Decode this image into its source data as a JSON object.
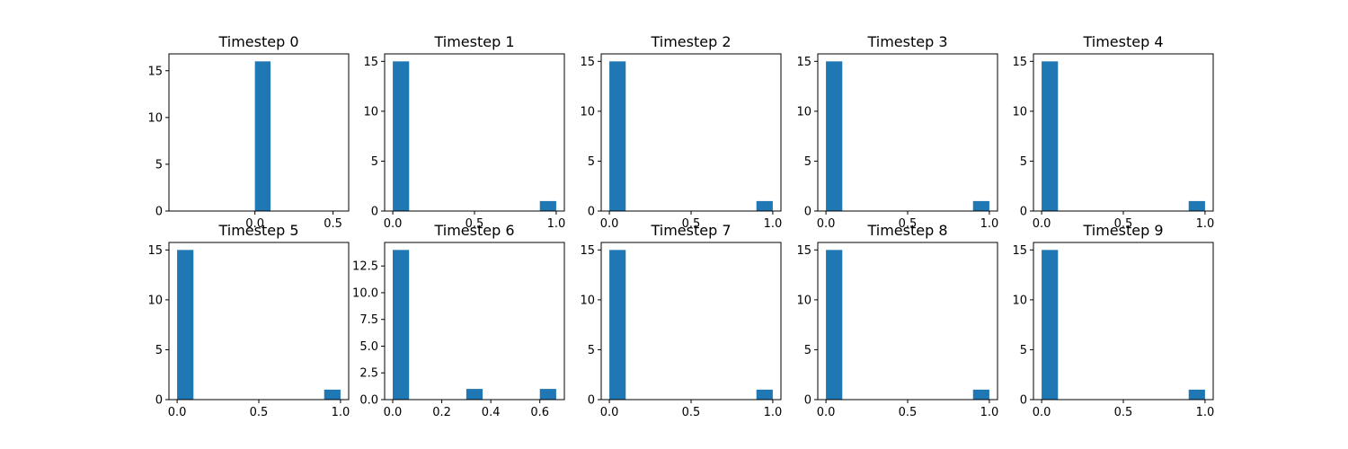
{
  "chart_data": [
    {
      "type": "bar",
      "title": "Timestep 0",
      "bars": [
        {
          "x0": 0.0,
          "x1": 0.1,
          "value": 16
        }
      ],
      "xlim": [
        -0.55,
        0.6
      ],
      "ylim": [
        0,
        16.8
      ],
      "xticks": [
        {
          "value": 0.0,
          "label": "0.0"
        },
        {
          "value": 0.5,
          "label": "0.5"
        }
      ],
      "yticks": [
        {
          "value": 0,
          "label": "0"
        },
        {
          "value": 5,
          "label": "5"
        },
        {
          "value": 10,
          "label": "10"
        },
        {
          "value": 15,
          "label": "15"
        }
      ]
    },
    {
      "type": "bar",
      "title": "Timestep 1",
      "bars": [
        {
          "x0": 0.0,
          "x1": 0.1,
          "value": 15
        },
        {
          "x0": 0.9,
          "x1": 1.0,
          "value": 1
        }
      ],
      "xlim": [
        -0.05,
        1.05
      ],
      "ylim": [
        0,
        15.75
      ],
      "xticks": [
        {
          "value": 0.0,
          "label": "0.0"
        },
        {
          "value": 0.5,
          "label": "0.5"
        },
        {
          "value": 1.0,
          "label": "1.0"
        }
      ],
      "yticks": [
        {
          "value": 0,
          "label": "0"
        },
        {
          "value": 5,
          "label": "5"
        },
        {
          "value": 10,
          "label": "10"
        },
        {
          "value": 15,
          "label": "15"
        }
      ]
    },
    {
      "type": "bar",
      "title": "Timestep 2",
      "bars": [
        {
          "x0": 0.0,
          "x1": 0.1,
          "value": 15
        },
        {
          "x0": 0.9,
          "x1": 1.0,
          "value": 1
        }
      ],
      "xlim": [
        -0.05,
        1.05
      ],
      "ylim": [
        0,
        15.75
      ],
      "xticks": [
        {
          "value": 0.0,
          "label": "0.0"
        },
        {
          "value": 0.5,
          "label": "0.5"
        },
        {
          "value": 1.0,
          "label": "1.0"
        }
      ],
      "yticks": [
        {
          "value": 0,
          "label": "0"
        },
        {
          "value": 5,
          "label": "5"
        },
        {
          "value": 10,
          "label": "10"
        },
        {
          "value": 15,
          "label": "15"
        }
      ]
    },
    {
      "type": "bar",
      "title": "Timestep 3",
      "bars": [
        {
          "x0": 0.0,
          "x1": 0.1,
          "value": 15
        },
        {
          "x0": 0.9,
          "x1": 1.0,
          "value": 1
        }
      ],
      "xlim": [
        -0.05,
        1.05
      ],
      "ylim": [
        0,
        15.75
      ],
      "xticks": [
        {
          "value": 0.0,
          "label": "0.0"
        },
        {
          "value": 0.5,
          "label": "0.5"
        },
        {
          "value": 1.0,
          "label": "1.0"
        }
      ],
      "yticks": [
        {
          "value": 0,
          "label": "0"
        },
        {
          "value": 5,
          "label": "5"
        },
        {
          "value": 10,
          "label": "10"
        },
        {
          "value": 15,
          "label": "15"
        }
      ]
    },
    {
      "type": "bar",
      "title": "Timestep 4",
      "bars": [
        {
          "x0": 0.0,
          "x1": 0.1,
          "value": 15
        },
        {
          "x0": 0.9,
          "x1": 1.0,
          "value": 1
        }
      ],
      "xlim": [
        -0.05,
        1.05
      ],
      "ylim": [
        0,
        15.75
      ],
      "xticks": [
        {
          "value": 0.0,
          "label": "0.0"
        },
        {
          "value": 0.5,
          "label": "0.5"
        },
        {
          "value": 1.0,
          "label": "1.0"
        }
      ],
      "yticks": [
        {
          "value": 0,
          "label": "0"
        },
        {
          "value": 5,
          "label": "5"
        },
        {
          "value": 10,
          "label": "10"
        },
        {
          "value": 15,
          "label": "15"
        }
      ]
    },
    {
      "type": "bar",
      "title": "Timestep 5",
      "bars": [
        {
          "x0": 0.0,
          "x1": 0.1,
          "value": 15
        },
        {
          "x0": 0.9,
          "x1": 1.0,
          "value": 1
        }
      ],
      "xlim": [
        -0.05,
        1.05
      ],
      "ylim": [
        0,
        15.75
      ],
      "xticks": [
        {
          "value": 0.0,
          "label": "0.0"
        },
        {
          "value": 0.5,
          "label": "0.5"
        },
        {
          "value": 1.0,
          "label": "1.0"
        }
      ],
      "yticks": [
        {
          "value": 0,
          "label": "0"
        },
        {
          "value": 5,
          "label": "5"
        },
        {
          "value": 10,
          "label": "10"
        },
        {
          "value": 15,
          "label": "15"
        }
      ]
    },
    {
      "type": "bar",
      "title": "Timestep 6",
      "bars": [
        {
          "x0": 0.0,
          "x1": 0.0667,
          "value": 14
        },
        {
          "x0": 0.3,
          "x1": 0.3667,
          "value": 1
        },
        {
          "x0": 0.6,
          "x1": 0.6667,
          "value": 1
        }
      ],
      "xlim": [
        -0.033,
        0.7
      ],
      "ylim": [
        0,
        14.7
      ],
      "xticks": [
        {
          "value": 0.0,
          "label": "0.0"
        },
        {
          "value": 0.2,
          "label": "0.2"
        },
        {
          "value": 0.4,
          "label": "0.4"
        },
        {
          "value": 0.6,
          "label": "0.6"
        }
      ],
      "yticks": [
        {
          "value": 0,
          "label": "0.0"
        },
        {
          "value": 2.5,
          "label": "2.5"
        },
        {
          "value": 5,
          "label": "5.0"
        },
        {
          "value": 7.5,
          "label": "7.5"
        },
        {
          "value": 10,
          "label": "10.0"
        },
        {
          "value": 12.5,
          "label": "12.5"
        }
      ]
    },
    {
      "type": "bar",
      "title": "Timestep 7",
      "bars": [
        {
          "x0": 0.0,
          "x1": 0.1,
          "value": 15
        },
        {
          "x0": 0.9,
          "x1": 1.0,
          "value": 1
        }
      ],
      "xlim": [
        -0.05,
        1.05
      ],
      "ylim": [
        0,
        15.75
      ],
      "xticks": [
        {
          "value": 0.0,
          "label": "0.0"
        },
        {
          "value": 0.5,
          "label": "0.5"
        },
        {
          "value": 1.0,
          "label": "1.0"
        }
      ],
      "yticks": [
        {
          "value": 0,
          "label": "0"
        },
        {
          "value": 5,
          "label": "5"
        },
        {
          "value": 10,
          "label": "10"
        },
        {
          "value": 15,
          "label": "15"
        }
      ]
    },
    {
      "type": "bar",
      "title": "Timestep 8",
      "bars": [
        {
          "x0": 0.0,
          "x1": 0.1,
          "value": 15
        },
        {
          "x0": 0.9,
          "x1": 1.0,
          "value": 1
        }
      ],
      "xlim": [
        -0.05,
        1.05
      ],
      "ylim": [
        0,
        15.75
      ],
      "xticks": [
        {
          "value": 0.0,
          "label": "0.0"
        },
        {
          "value": 0.5,
          "label": "0.5"
        },
        {
          "value": 1.0,
          "label": "1.0"
        }
      ],
      "yticks": [
        {
          "value": 0,
          "label": "0"
        },
        {
          "value": 5,
          "label": "5"
        },
        {
          "value": 10,
          "label": "10"
        },
        {
          "value": 15,
          "label": "15"
        }
      ]
    },
    {
      "type": "bar",
      "title": "Timestep 9",
      "bars": [
        {
          "x0": 0.0,
          "x1": 0.1,
          "value": 15
        },
        {
          "x0": 0.9,
          "x1": 1.0,
          "value": 1
        }
      ],
      "xlim": [
        -0.05,
        1.05
      ],
      "ylim": [
        0,
        15.75
      ],
      "xticks": [
        {
          "value": 0.0,
          "label": "0.0"
        },
        {
          "value": 0.5,
          "label": "0.5"
        },
        {
          "value": 1.0,
          "label": "1.0"
        }
      ],
      "yticks": [
        {
          "value": 0,
          "label": "0"
        },
        {
          "value": 5,
          "label": "5"
        },
        {
          "value": 10,
          "label": "10"
        },
        {
          "value": 15,
          "label": "15"
        }
      ]
    }
  ],
  "colors": {
    "bar": "#1f77b4",
    "axes": "#000000",
    "background": "#ffffff"
  },
  "grid": false,
  "legend": "none"
}
